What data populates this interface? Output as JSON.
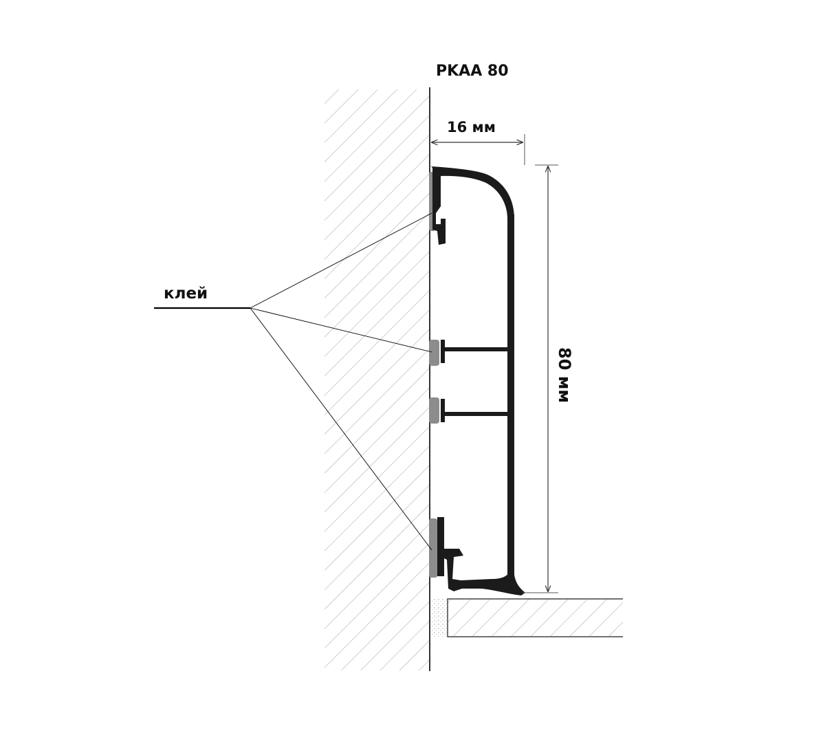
{
  "title": "PKAA 80",
  "labels": {
    "width": "16 мм",
    "height": "80 мм",
    "glue": "клей"
  },
  "colors": {
    "profile": "#1b1b1b",
    "glue": "#8c8c8c",
    "hatch": "#b5b5b5",
    "line": "#000000"
  }
}
